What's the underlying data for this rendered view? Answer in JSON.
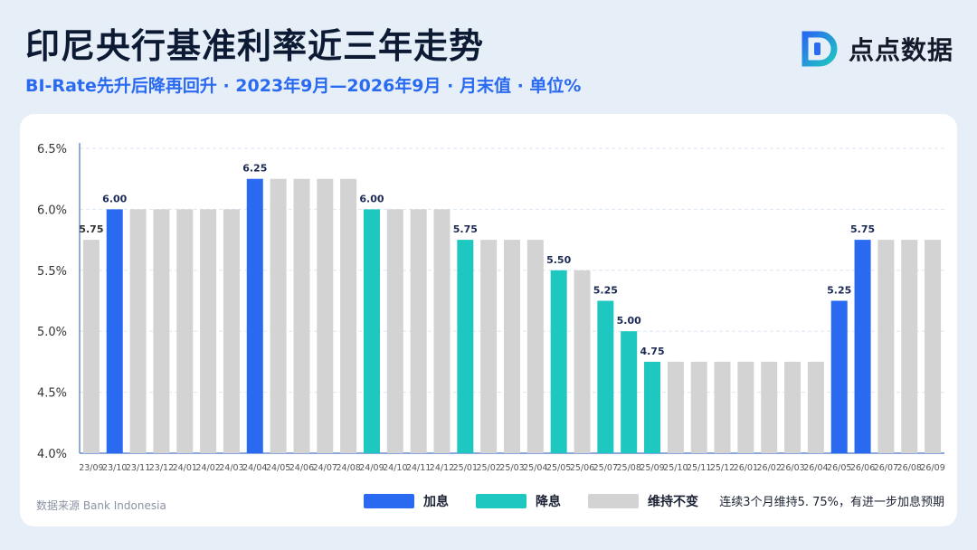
{
  "header": {
    "title": "印尼央行基准利率近三年走势",
    "subtitle": "BI-Rate先升后降再回升 · 2023年9月—2026年9月 · 月末值 · 单位%"
  },
  "brand": {
    "name": "点点数据",
    "logo_letter": "D",
    "colors": [
      "#2a6af0",
      "#1fc7c1"
    ]
  },
  "footer": {
    "source": "数据来源 Bank Indonesia",
    "note": "连续3个月维持5. 75%，有进一步加息预期"
  },
  "legend": [
    {
      "label": "加息",
      "color": "#2a6af0"
    },
    {
      "label": "降息",
      "color": "#1fc7c1"
    },
    {
      "label": "维持不变",
      "color": "#d3d3d3"
    }
  ],
  "chart_data": {
    "type": "bar",
    "categories": [
      "23/09",
      "23/10",
      "23/11",
      "23/12",
      "24/01",
      "24/02",
      "24/03",
      "24/04",
      "24/05",
      "24/06",
      "24/07",
      "24/08",
      "24/09",
      "24/10",
      "24/11",
      "24/12",
      "25/01",
      "25/02",
      "25/03",
      "25/04",
      "25/05",
      "25/06",
      "25/07",
      "25/08",
      "25/09",
      "25/10",
      "25/11",
      "25/12",
      "26/01",
      "26/02",
      "26/03",
      "26/04",
      "26/05",
      "26/06",
      "26/07",
      "26/08",
      "26/09"
    ],
    "values": [
      5.75,
      6.0,
      6.0,
      6.0,
      6.0,
      6.0,
      6.0,
      6.25,
      6.25,
      6.25,
      6.25,
      6.25,
      6.0,
      6.0,
      6.0,
      6.0,
      5.75,
      5.75,
      5.75,
      5.75,
      5.5,
      5.5,
      5.25,
      5.0,
      4.75,
      4.75,
      4.75,
      4.75,
      4.75,
      4.75,
      4.75,
      4.75,
      5.25,
      5.75,
      5.75,
      5.75,
      5.75
    ],
    "status": [
      "hold",
      "hike",
      "hold",
      "hold",
      "hold",
      "hold",
      "hold",
      "hike",
      "hold",
      "hold",
      "hold",
      "hold",
      "cut",
      "hold",
      "hold",
      "hold",
      "cut",
      "hold",
      "hold",
      "hold",
      "cut",
      "hold",
      "cut",
      "cut",
      "cut",
      "hold",
      "hold",
      "hold",
      "hold",
      "hold",
      "hold",
      "hold",
      "hike",
      "hike",
      "hold",
      "hold",
      "hold"
    ],
    "data_labels": {
      "0": "5.75",
      "1": "6.00",
      "7": "6.25",
      "12": "6.00",
      "16": "5.75",
      "20": "5.50",
      "22": "5.25",
      "23": "5.00",
      "24": "4.75",
      "32": "5.25",
      "33": "5.75"
    },
    "yticks": [
      "4.0%",
      "4.5%",
      "5.0%",
      "5.5%",
      "6.0%",
      "6.5%"
    ],
    "ylim": [
      4.0,
      6.5
    ],
    "grid": true,
    "colors": {
      "hike": "#2a6af0",
      "cut": "#1fc7c1",
      "hold": "#d3d3d3"
    }
  }
}
